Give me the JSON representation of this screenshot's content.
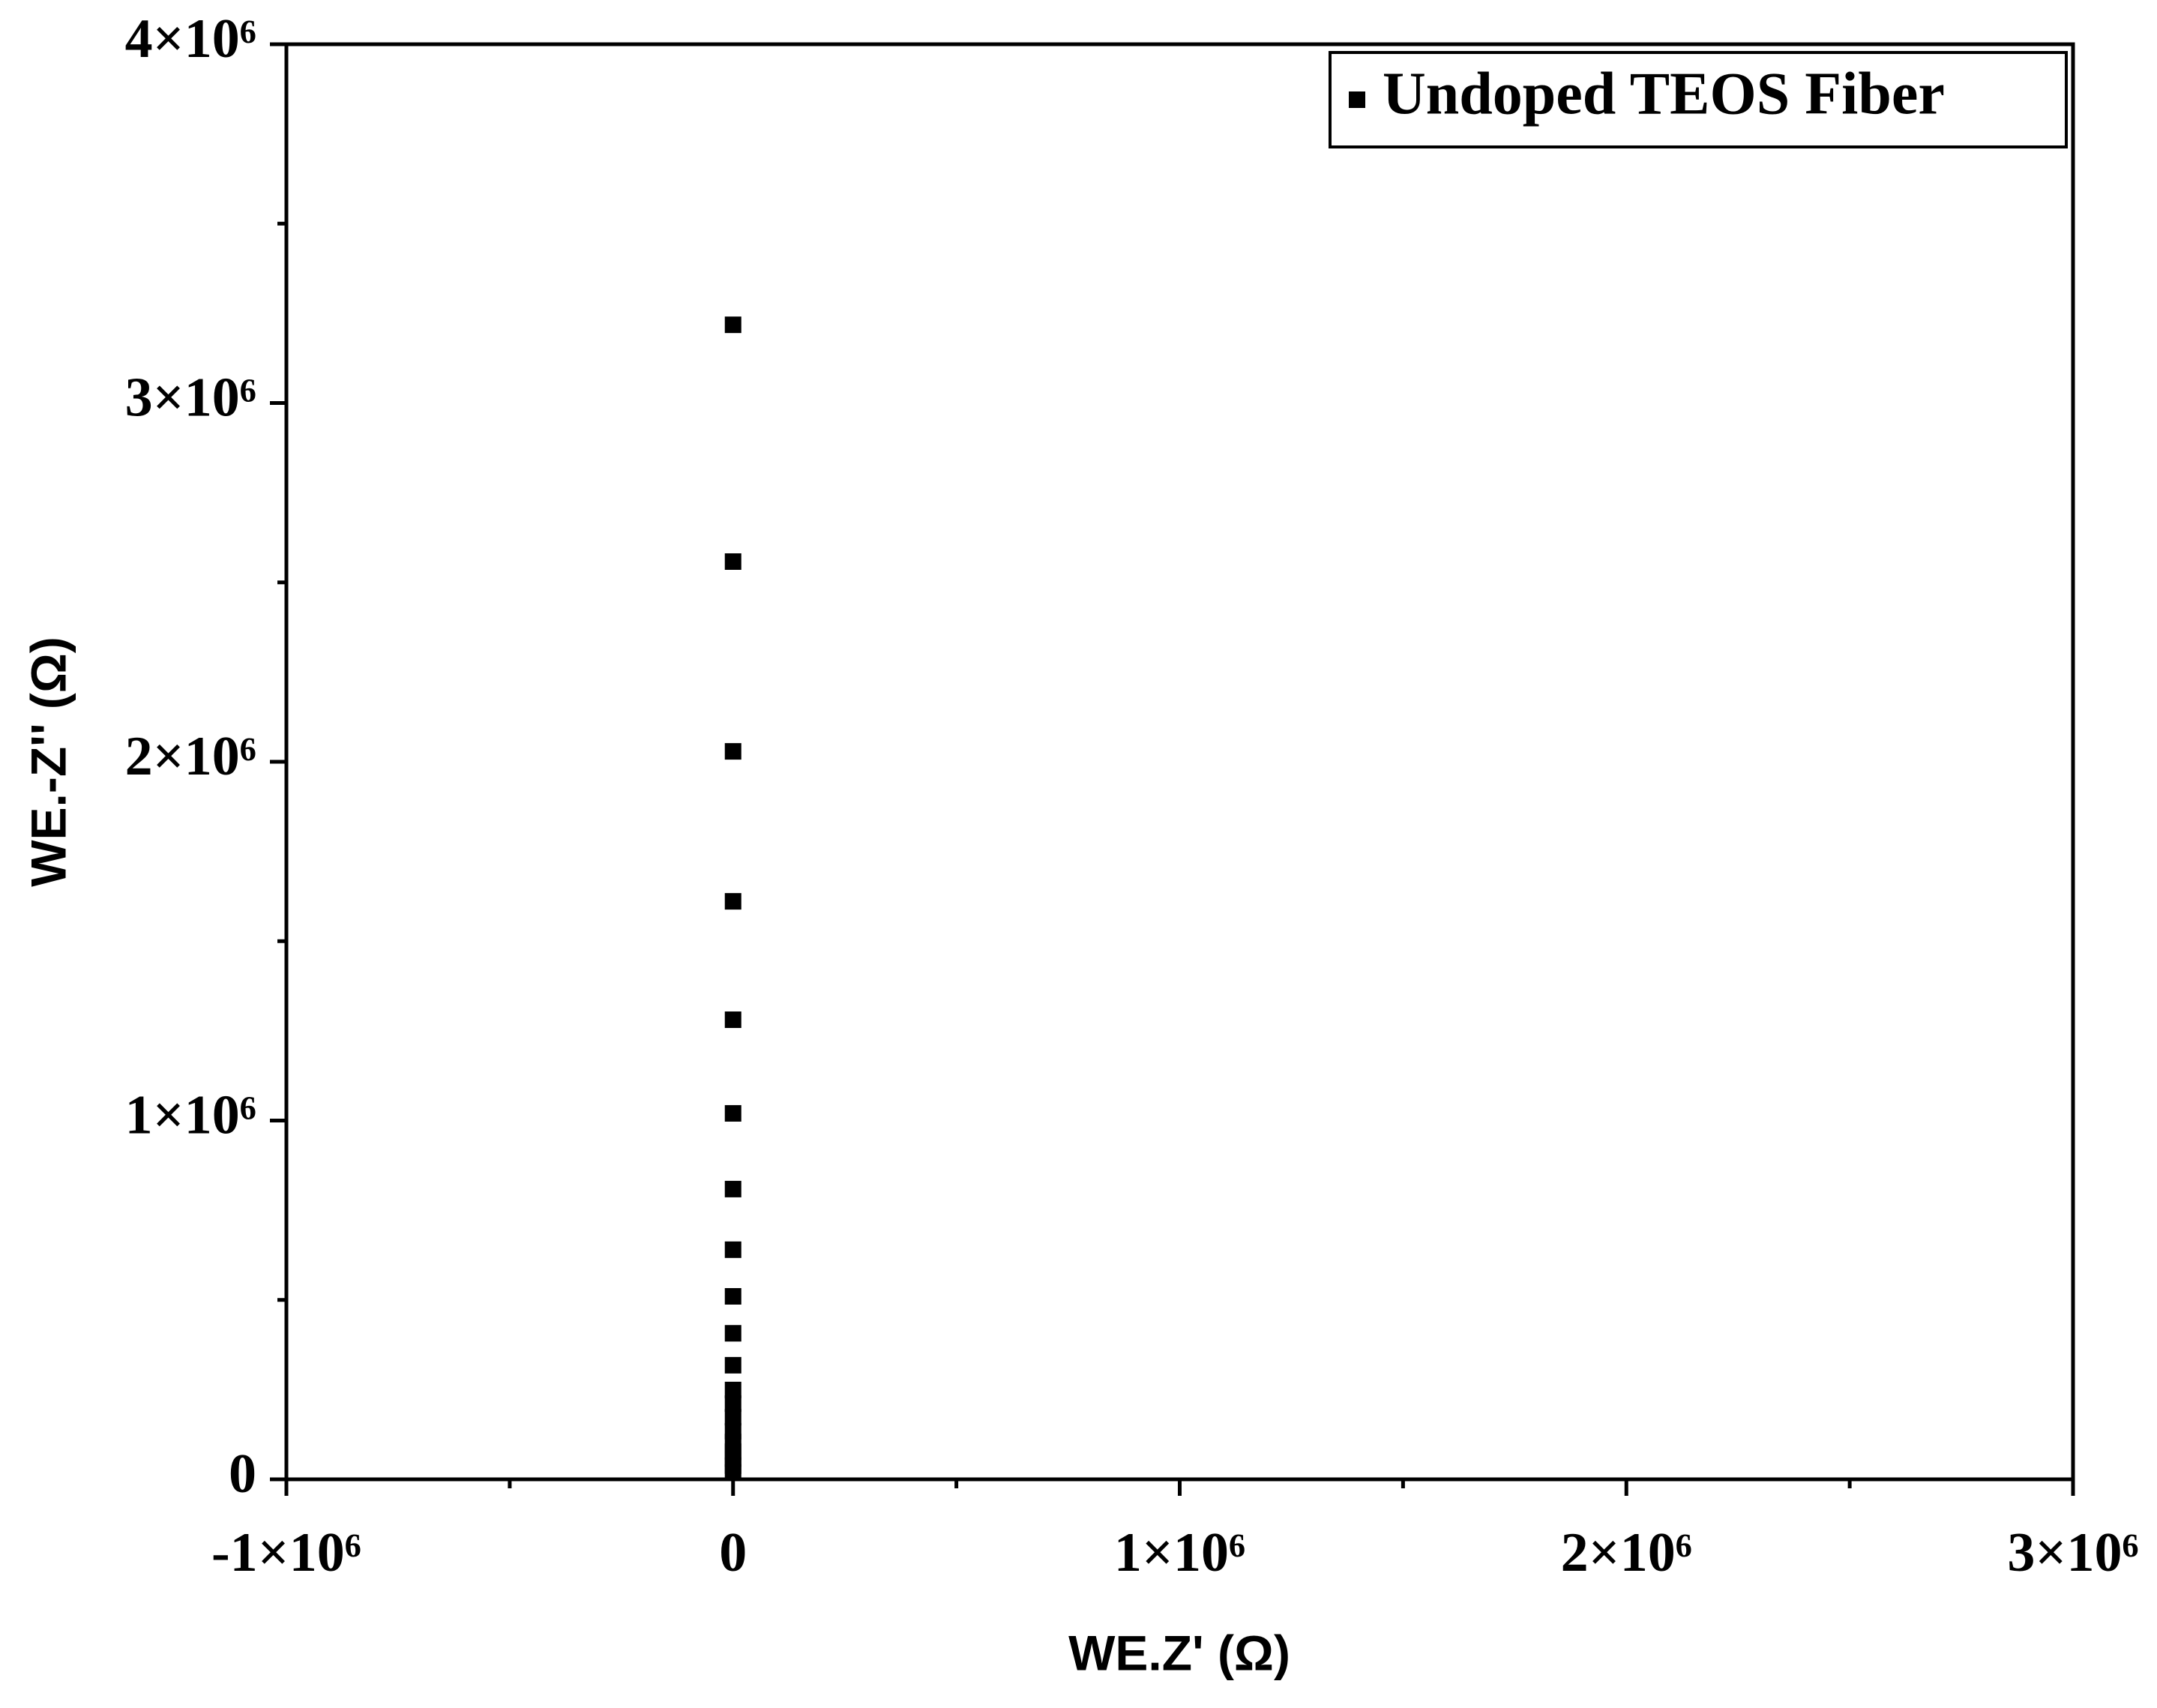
{
  "chart_data": {
    "type": "scatter",
    "x_label": "WE.Z' (Ω)",
    "y_label": "WE.-Z'' (Ω)",
    "xlim": [
      -1000000,
      3000000
    ],
    "ylim": [
      0,
      4000000
    ],
    "xticks": [
      {
        "value": -1000000,
        "label": "-1×10⁶"
      },
      0,
      {
        "value": 1000000,
        "label": "1×10⁶"
      },
      {
        "value": 2000000,
        "label": "2×10⁶"
      },
      {
        "value": 3000000,
        "label": "3×10⁶"
      }
    ],
    "yticks": [
      0,
      {
        "value": 1000000,
        "label": "1×10⁶"
      },
      {
        "value": 2000000,
        "label": "2×10⁶"
      },
      {
        "value": 3000000,
        "label": "3×10⁶"
      },
      {
        "value": 4000000,
        "label": "4×10⁶"
      }
    ],
    "xminorticks": [
      -500000,
      500000,
      1500000,
      2500000
    ],
    "yminorticks": [
      500000,
      1500000,
      2500000,
      3500000
    ],
    "legend_position": "upper right",
    "series": [
      {
        "name": "Undoped TEOS Fiber",
        "color": "#000000",
        "x": [
          0,
          0,
          0,
          0,
          0,
          0,
          0,
          0,
          0,
          0,
          0,
          0,
          0,
          0,
          0,
          0,
          0,
          0,
          0,
          0
        ],
        "values": [
          3218000,
          2558000,
          2029000,
          1611000,
          1281000,
          1020000,
          809000,
          640000,
          510000,
          407000,
          318000,
          249000,
          211000,
          173000,
          134000,
          104000,
          77000,
          58000,
          38000,
          19000
        ]
      }
    ]
  }
}
